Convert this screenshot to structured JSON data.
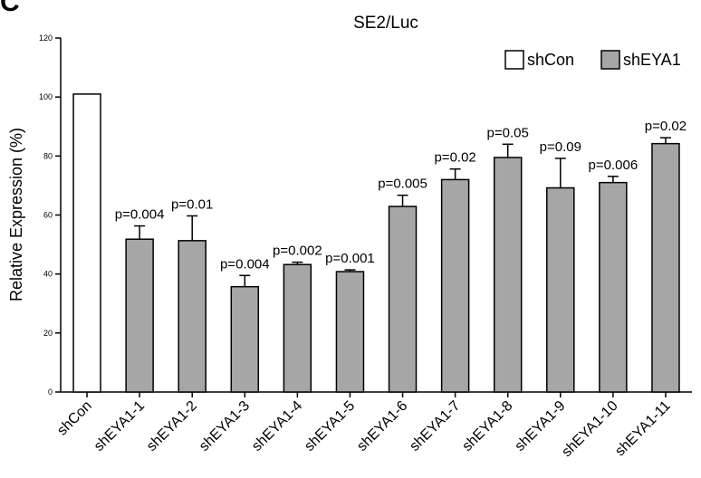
{
  "panel_letter": "C",
  "chart_data": {
    "type": "bar",
    "title": "SE2/Luc",
    "xlabel": "",
    "ylabel": "Relative Expression (%)",
    "ylim": [
      0,
      120
    ],
    "yticks": [
      "0",
      "20",
      "40",
      "60",
      "80",
      "100",
      "120"
    ],
    "categories": [
      "shCon",
      "shEYA1-1",
      "shEYA1-2",
      "shEYA1-3",
      "shEYA1-4",
      "shEYA1-5",
      "shEYA1-6",
      "shEYA1-7",
      "shEYA1-8",
      "shEYA1-9",
      "shEYA1-10",
      "shEYA1-11"
    ],
    "values": [
      101,
      51.8,
      51.3,
      35.7,
      43.2,
      40.8,
      62.9,
      72.0,
      79.5,
      69.2,
      71.0,
      84.2
    ],
    "errors": [
      0,
      4.5,
      8.4,
      3.8,
      0.8,
      0.6,
      3.8,
      3.6,
      4.5,
      10.0,
      2.1,
      2.0
    ],
    "pvalues": [
      "",
      "p=0.004",
      "p=0.01",
      "p=0.004",
      "p=0.002",
      "p=0.001",
      "p=0.005",
      "p=0.02",
      "p=0.05",
      "p=0.09",
      "p=0.006",
      "p=0.02"
    ],
    "series_by_bar": [
      "shCon",
      "shEYA1",
      "shEYA1",
      "shEYA1",
      "shEYA1",
      "shEYA1",
      "shEYA1",
      "shEYA1",
      "shEYA1",
      "shEYA1",
      "shEYA1",
      "shEYA1"
    ],
    "legend": {
      "placement": "top-right",
      "items": [
        {
          "name": "shCon",
          "color": "#ffffff"
        },
        {
          "name": "shEYA1",
          "color": "#a6a6a6"
        }
      ]
    },
    "grid": false
  }
}
